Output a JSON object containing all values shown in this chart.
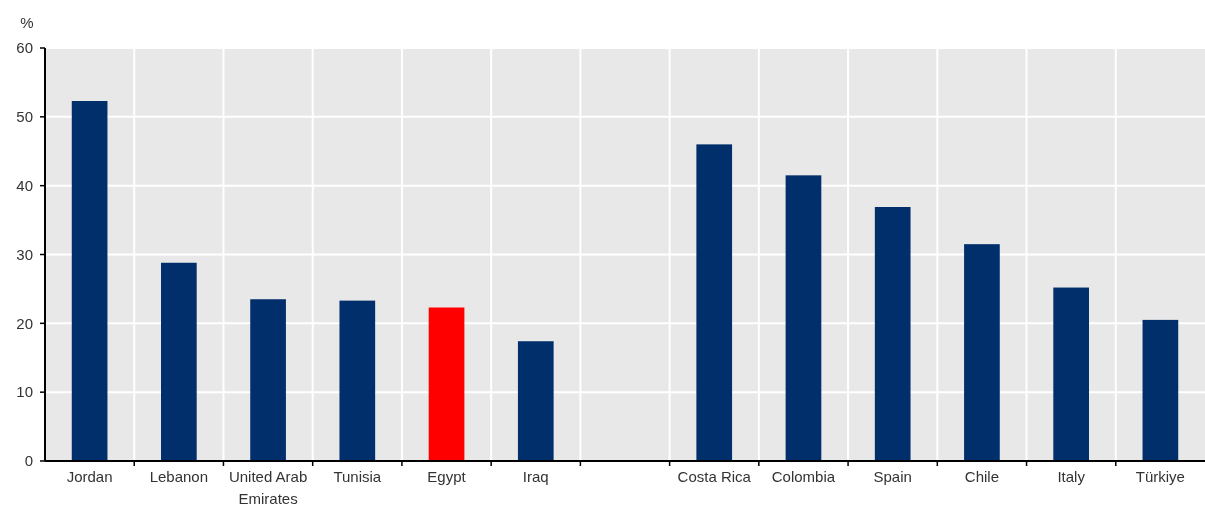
{
  "chart_data": {
    "type": "bar",
    "ylabel": "%",
    "categories": [
      "Jordan",
      "Lebanon",
      "United Arab Emirates",
      "Tunisia",
      "Egypt",
      "Iraq",
      null,
      "Costa Rica",
      "Colombia",
      "Spain",
      "Chile",
      "Italy",
      "Türkiye"
    ],
    "values": [
      52.3,
      28.8,
      23.5,
      23.3,
      22.3,
      17.4,
      null,
      46.0,
      41.5,
      36.9,
      31.5,
      25.2,
      20.5
    ],
    "colors": [
      "#002f6c",
      "#002f6c",
      "#002f6c",
      "#002f6c",
      "#ff0000",
      "#002f6c",
      null,
      "#002f6c",
      "#002f6c",
      "#002f6c",
      "#002f6c",
      "#002f6c",
      "#002f6c"
    ],
    "ylim": [
      0,
      60
    ],
    "yticks": [
      0,
      10,
      20,
      30,
      40,
      50,
      60
    ],
    "grid": true
  }
}
